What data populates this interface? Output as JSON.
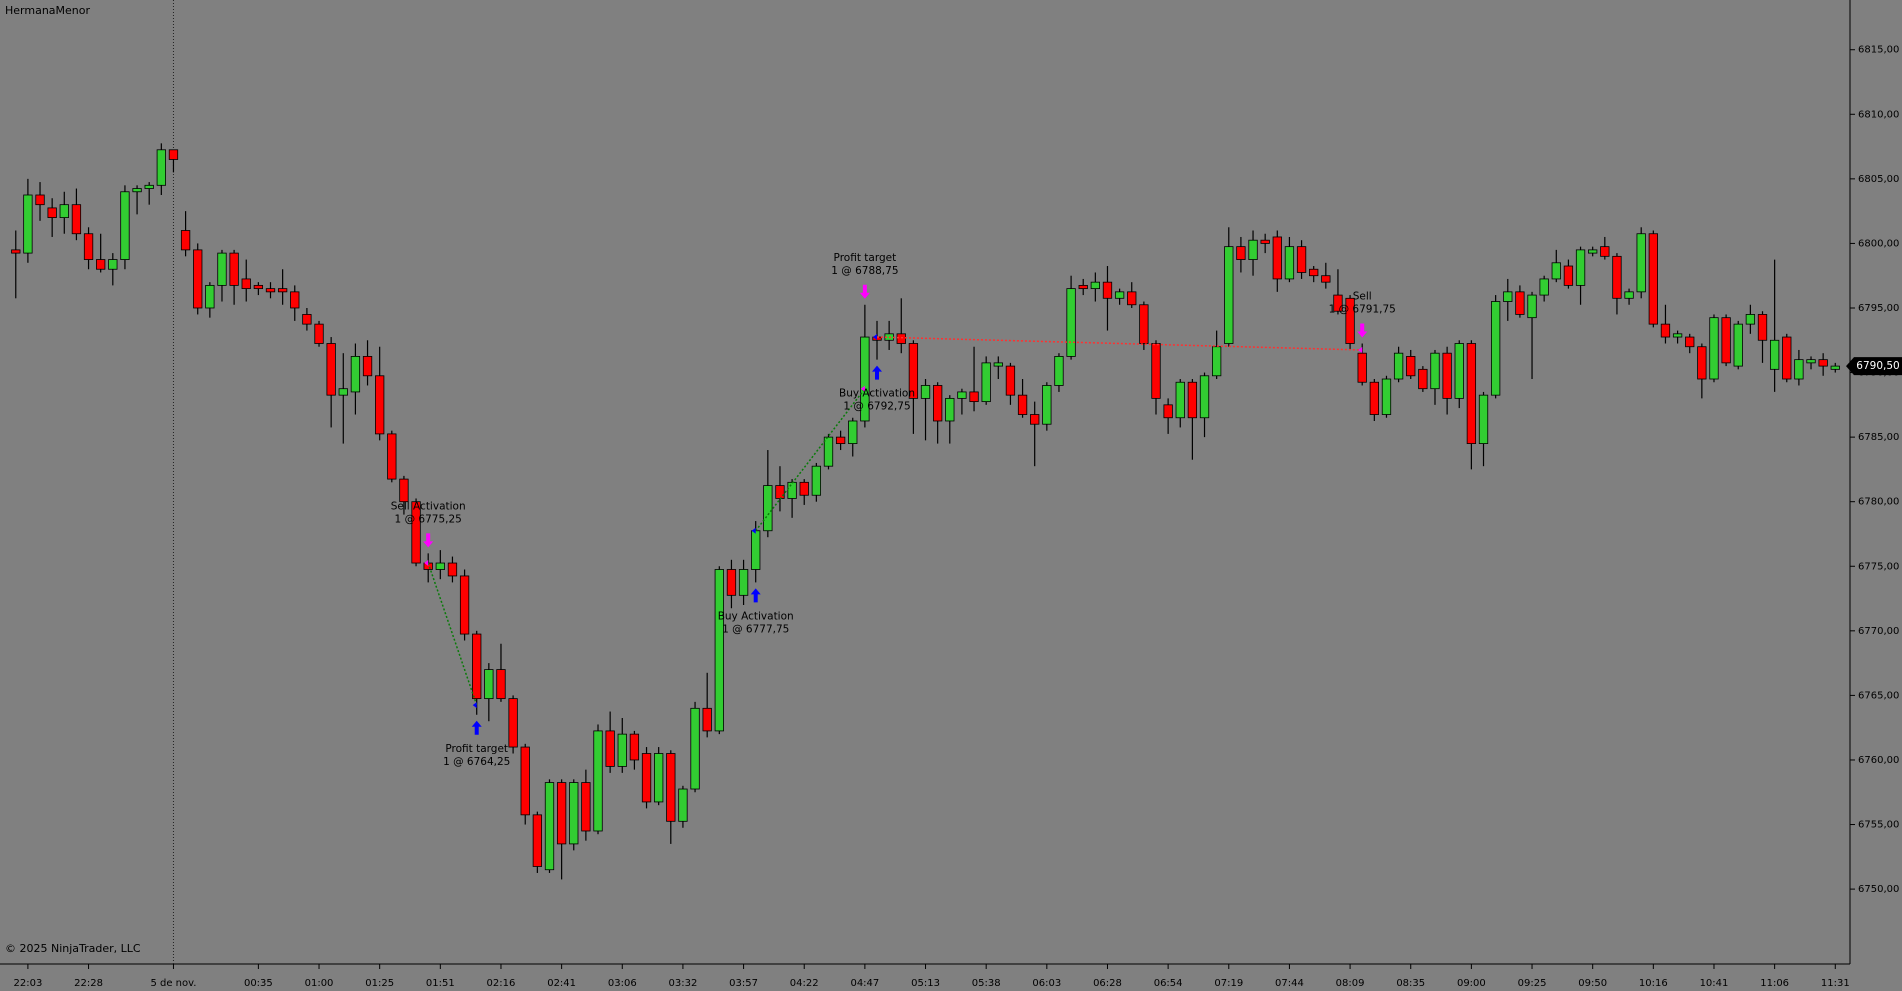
{
  "chart_data": {
    "type": "candlestick",
    "title": "HermanaMenor",
    "copyright": "© 2025 NinjaTrader, LLC",
    "up_color": "#32cd32",
    "down_color": "#ff0000",
    "categories": [
      null,
      "22:03",
      null,
      null,
      null,
      null,
      "22:28",
      null,
      null,
      null,
      null,
      null,
      null,
      "5 de nov.",
      null,
      null,
      null,
      null,
      null,
      null,
      "00:35",
      null,
      null,
      null,
      null,
      "01:00",
      null,
      null,
      null,
      null,
      "01:25",
      null,
      null,
      null,
      null,
      "01:51",
      null,
      null,
      null,
      null,
      "02:16",
      null,
      null,
      null,
      null,
      "02:41",
      null,
      null,
      null,
      null,
      "03:06",
      null,
      null,
      null,
      null,
      "03:32",
      null,
      null,
      null,
      null,
      "03:57",
      null,
      null,
      null,
      null,
      "04:22",
      null,
      null,
      null,
      null,
      "04:47",
      null,
      null,
      null,
      null,
      "05:13",
      null,
      null,
      null,
      null,
      "05:38",
      null,
      null,
      null,
      null,
      "06:03",
      null,
      null,
      null,
      null,
      "06:28",
      null,
      null,
      null,
      null,
      "06:54",
      null,
      null,
      null,
      null,
      "07:19",
      null,
      null,
      null,
      null,
      "07:44",
      null,
      null,
      null,
      null,
      "08:09",
      null,
      null,
      null,
      null,
      "08:35",
      null,
      null,
      null,
      null,
      "09:00",
      null,
      null,
      null,
      null,
      "09:25",
      null,
      null,
      null,
      null,
      "09:50",
      null,
      null,
      null,
      null,
      "10:16",
      null,
      null,
      null,
      null,
      "10:41",
      null,
      null,
      null,
      null,
      "11:06",
      null,
      null,
      null,
      null,
      "11:31"
    ],
    "open": [
      6799.5,
      6799.25,
      6803.75,
      6802.75,
      6802,
      6803,
      6800.75,
      6798.75,
      6798,
      6798.75,
      6804,
      6804.25,
      6804.5,
      6807.25,
      6801,
      6799.5,
      6795,
      6796.75,
      6799.25,
      6797.25,
      6796.75,
      6796.5,
      6796.5,
      6796.25,
      6794.5,
      6793.75,
      6792.25,
      6788.25,
      6788.5,
      6791.25,
      6789.75,
      6785.25,
      6781.75,
      6780,
      6775.25,
      6774.75,
      6775.25,
      6774.25,
      6769.75,
      6764.75,
      6767,
      6764.75,
      6761,
      6755.75,
      6751.5,
      6758.25,
      6753.5,
      6758.25,
      6754.5,
      6762.25,
      6759.5,
      6762,
      6760.5,
      6756.75,
      6760.5,
      6755.25,
      6757.75,
      6764,
      6762.25,
      6774.75,
      6772.75,
      6774.75,
      6777.75,
      6781.25,
      6780.25,
      6781.5,
      6780.5,
      6782.75,
      6785,
      6784.5,
      6786.25,
      6792.75,
      6792.5,
      6793,
      6792.25,
      6788,
      6789,
      6786.25,
      6788,
      6788.5,
      6787.75,
      6790.5,
      6790.5,
      6788.25,
      6786.75,
      6786,
      6789,
      6791.25,
      6796.75,
      6796.5,
      6797,
      6795.75,
      6796.25,
      6795.25,
      6792.25,
      6787.5,
      6786.5,
      6789.25,
      6786.5,
      6789.75,
      6792.25,
      6799.75,
      6798.75,
      6800.25,
      6800.5,
      6797.25,
      6799.75,
      6798,
      6797.5,
      6796,
      6795.75,
      6791.5,
      6789.25,
      6786.75,
      6789.5,
      6791.25,
      6790.25,
      6788.75,
      6791.5,
      6788,
      6792.25,
      6784.5,
      6788.25,
      6795.5,
      6796.25,
      6794.25,
      6796,
      6797.25,
      6798.25,
      6796.75,
      6799.25,
      6799.75,
      6799,
      6795.75,
      6796.25,
      6800.75,
      6793.75,
      6792.75,
      6792.75,
      6792,
      6789.5,
      6794.25,
      6790.5,
      6793.75,
      6794.5,
      6790.25,
      6792.75,
      6789.5,
      6790.75,
      6791,
      6790.25
    ],
    "high": [
      6801,
      6805,
      6804.75,
      6803.5,
      6804,
      6804.25,
      6801.25,
      6800.75,
      6799.25,
      6804.5,
      6804.5,
      6804.75,
      6807.75,
      6807.25,
      6802.5,
      6800,
      6797,
      6799.5,
      6799.5,
      6798.75,
      6797,
      6797,
      6798,
      6796.75,
      6795,
      6794,
      6792.75,
      6791.5,
      6792.25,
      6792.5,
      6792,
      6785.5,
      6782,
      6780.25,
      6776,
      6776.25,
      6775.75,
      6774.75,
      6770,
      6767.5,
      6769,
      6765,
      6761.25,
      6756,
      6758.5,
      6758.5,
      6758.5,
      6759.25,
      6762.75,
      6763.75,
      6763.25,
      6762.25,
      6761,
      6761,
      6760.75,
      6758,
      6764.5,
      6766.75,
      6775,
      6775.5,
      6775.5,
      6778.5,
      6784,
      6782.75,
      6781.75,
      6781.75,
      6783,
      6785.25,
      6785.5,
      6786.5,
      6795.25,
      6794,
      6794,
      6795.75,
      6792.5,
      6789.5,
      6789.25,
      6788.25,
      6788.75,
      6792,
      6791.25,
      6791.25,
      6790.75,
      6789.5,
      6787.75,
      6789.25,
      6791.5,
      6797.5,
      6797.25,
      6797.75,
      6798.25,
      6796.5,
      6797,
      6795.5,
      6792.5,
      6788,
      6789.5,
      6789.5,
      6790,
      6793.25,
      6801.25,
      6800.5,
      6801,
      6800.75,
      6801,
      6800.5,
      6800.25,
      6798.25,
      6798.5,
      6798,
      6796,
      6792.25,
      6789.5,
      6789.75,
      6792,
      6791.75,
      6790.5,
      6791.75,
      6792,
      6792.5,
      6792.5,
      6788.5,
      6796,
      6797.25,
      6796.75,
      6796.25,
      6797.5,
      6799.5,
      6798.75,
      6799.75,
      6799.75,
      6800.5,
      6799.25,
      6796.5,
      6801.25,
      6801,
      6795.25,
      6793.25,
      6793,
      6792.25,
      6794.5,
      6794.5,
      6794,
      6795.25,
      6794.75,
      6798.75,
      6793,
      6791.75,
      6791.25,
      6791.5,
      6790.75
    ],
    "low": [
      6795.75,
      6798.5,
      6801.75,
      6800.5,
      6800.75,
      6800.25,
      6798,
      6797.75,
      6796.75,
      6798,
      6802.25,
      6803,
      6803.75,
      6805.5,
      6799,
      6794.5,
      6794.25,
      6795.5,
      6795.25,
      6795.5,
      6796,
      6795.75,
      6795.25,
      6794,
      6793.25,
      6792,
      6785.75,
      6784.5,
      6786.75,
      6789,
      6784.75,
      6781.5,
      6779,
      6775,
      6773.75,
      6774,
      6773.75,
      6769.25,
      6763.5,
      6763,
      6764.5,
      6760.5,
      6755,
      6751.25,
      6751.25,
      6750.75,
      6753,
      6753.75,
      6754.25,
      6759,
      6759,
      6759.25,
      6756.25,
      6756.5,
      6753.5,
      6754.75,
      6757.5,
      6761.75,
      6762,
      6771.75,
      6772,
      6773.75,
      6777.25,
      6779.25,
      6778.75,
      6779.75,
      6780,
      6782.5,
      6784,
      6783.5,
      6785.75,
      6791,
      6791.75,
      6791.5,
      6785.25,
      6784.75,
      6784.5,
      6784.5,
      6786.75,
      6787,
      6787.5,
      6789.5,
      6787.5,
      6786.5,
      6782.75,
      6785.5,
      6788.5,
      6791,
      6796,
      6795.5,
      6793.25,
      6795.25,
      6795,
      6791.75,
      6786.75,
      6785.25,
      6785.75,
      6783.25,
      6785,
      6789.5,
      6792,
      6797.75,
      6797.5,
      6799.25,
      6796.25,
      6797,
      6797.25,
      6797,
      6796.5,
      6794.5,
      6791.75,
      6789,
      6786.25,
      6786.5,
      6789.25,
      6789.5,
      6788.5,
      6787.5,
      6786.75,
      6787.25,
      6782.5,
      6782.75,
      6788,
      6794,
      6794.25,
      6789.5,
      6795.5,
      6797,
      6796.5,
      6795.25,
      6799,
      6798.75,
      6794.5,
      6795.25,
      6795.75,
      6793.5,
      6792.25,
      6792.25,
      6791.5,
      6788,
      6789.25,
      6790.5,
      6790.25,
      6793,
      6790.75,
      6788.5,
      6789.25,
      6789,
      6790.25,
      6789.75,
      6790
    ],
    "close": [
      6799.25,
      6803.75,
      6803,
      6802,
      6803,
      6800.75,
      6798.75,
      6798,
      6798.75,
      6804,
      6804.25,
      6804.5,
      6807.25,
      6806.5,
      6799.5,
      6795,
      6796.75,
      6799.25,
      6796.75,
      6796.5,
      6796.5,
      6796.25,
      6796.25,
      6795,
      6793.75,
      6792.25,
      6788.25,
      6788.75,
      6791.25,
      6789.75,
      6785.25,
      6781.75,
      6780,
      6775.25,
      6774.75,
      6775.25,
      6774.25,
      6769.75,
      6764.75,
      6767,
      6764.75,
      6761,
      6755.75,
      6751.75,
      6758.25,
      6753.5,
      6758.25,
      6754.5,
      6762.25,
      6759.5,
      6762,
      6760,
      6756.75,
      6760.5,
      6755.25,
      6757.75,
      6764,
      6762.25,
      6774.75,
      6772.75,
      6774.75,
      6777.75,
      6781.25,
      6780.25,
      6781.5,
      6780.5,
      6782.75,
      6785,
      6784.5,
      6786.25,
      6792.75,
      6792.5,
      6793,
      6792.25,
      6788,
      6789,
      6786.25,
      6788,
      6788.5,
      6787.75,
      6790.75,
      6790.75,
      6788.25,
      6786.75,
      6786,
      6789,
      6791.25,
      6796.5,
      6796.5,
      6797,
      6795.75,
      6796.25,
      6795.25,
      6792.25,
      6788,
      6786.5,
      6789.25,
      6786.5,
      6789.75,
      6792,
      6799.75,
      6798.75,
      6800.25,
      6800,
      6797.25,
      6799.75,
      6797.75,
      6797.5,
      6797,
      6794.75,
      6792.25,
      6789.25,
      6786.75,
      6789.5,
      6791.5,
      6789.75,
      6788.75,
      6791.5,
      6788,
      6792.25,
      6784.5,
      6788.25,
      6795.5,
      6796.25,
      6794.5,
      6796,
      6797.25,
      6798.5,
      6796.75,
      6799.5,
      6799.5,
      6799,
      6795.75,
      6796.25,
      6800.75,
      6793.75,
      6792.75,
      6793,
      6792,
      6789.5,
      6794.25,
      6790.75,
      6793.75,
      6794.5,
      6792.5,
      6792.5,
      6789.5,
      6791,
      6791,
      6790.5,
      6790.5
    ],
    "ylim": [
      6744.2,
      6818.85
    ],
    "yticks": [
      {
        "value": 6750,
        "label": "6750,00"
      },
      {
        "value": 6755,
        "label": "6755,00"
      },
      {
        "value": 6760,
        "label": "6760,00"
      },
      {
        "value": 6765,
        "label": "6765,00"
      },
      {
        "value": 6770,
        "label": "6770,00"
      },
      {
        "value": 6775,
        "label": "6775,00"
      },
      {
        "value": 6780,
        "label": "6780,00"
      },
      {
        "value": 6785,
        "label": "6785,00"
      },
      {
        "value": 6790,
        "label": "6790,00"
      },
      {
        "value": 6795,
        "label": "6795,00"
      },
      {
        "value": 6800,
        "label": "6800,00"
      },
      {
        "value": 6805,
        "label": "6805,00"
      },
      {
        "value": 6810,
        "label": "6810,00"
      },
      {
        "value": 6815,
        "label": "6815,00"
      }
    ],
    "last_price": {
      "value": 6790.5,
      "label": "6790,50"
    },
    "executions": [
      {
        "name": "Sell Activation",
        "price": {
          "value": 6775.25,
          "label": "1 @ 6775,25"
        },
        "color": "#ff00ff"
      },
      {
        "name": "Profit target",
        "price": {
          "value": 6764.25,
          "label": "1 @ 6764,25"
        },
        "color": "#0000ff"
      },
      {
        "name": "Buy Activation",
        "price": {
          "value": 6777.75,
          "label": "1 @ 6777,75"
        },
        "color": "#0000ff"
      },
      {
        "name": "Profit target",
        "price": {
          "value": 6788.75,
          "label": "1 @ 6788,75"
        },
        "color": "#ff00ff"
      },
      {
        "name": "Buy Activation",
        "price": {
          "value": 6792.75,
          "label": "1 @ 6792,75"
        },
        "color": "#0000ff"
      },
      {
        "name": "Sell",
        "price": {
          "value": 6791.75,
          "label": "1 @ 6791,75"
        },
        "color": "#ff00ff"
      }
    ]
  }
}
